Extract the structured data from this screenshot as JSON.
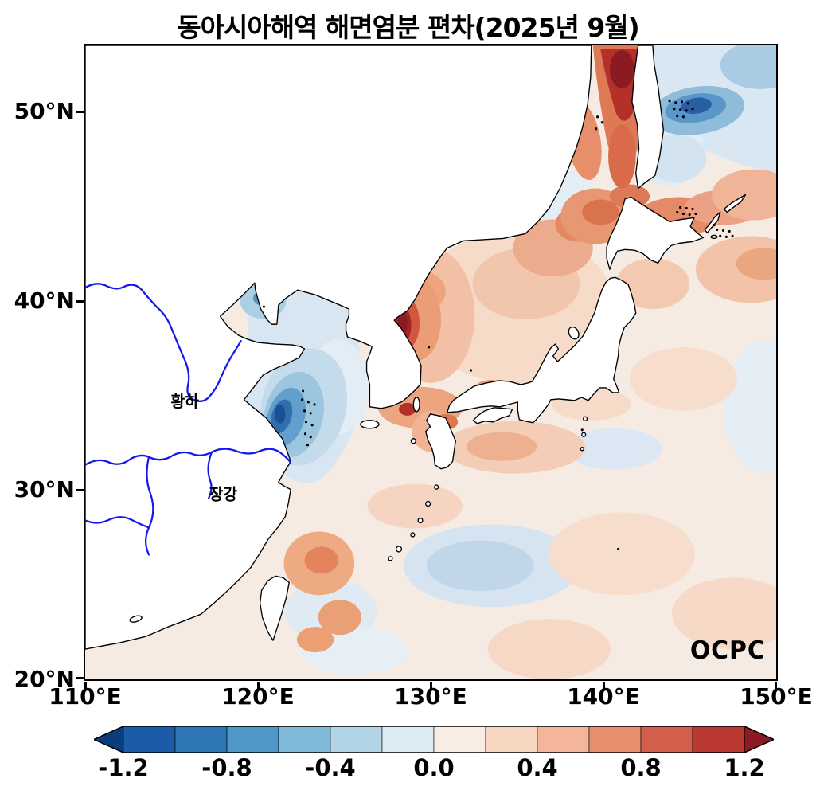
{
  "title": "동아시아해역 해면염분 편차(2025년 9월)",
  "axes": {
    "y_ticks": [
      "50°N",
      "40°N",
      "30°N",
      "20°N"
    ],
    "x_ticks": [
      "110°E",
      "120°E",
      "130°E",
      "140°E",
      "150°E"
    ]
  },
  "map_labels": {
    "yellow_river": "황하",
    "yangtze_river": "장강",
    "logo": "OCPC"
  },
  "colorbar": {
    "ticks": [
      "-1.2",
      "-0.8",
      "-0.4",
      "0.0",
      "0.4",
      "0.8",
      "1.2"
    ],
    "segment_colors": [
      "#1a5ca8",
      "#2e77b5",
      "#4f97c7",
      "#7fb9d9",
      "#b1d4e7",
      "#dcebf3",
      "#f9ece3",
      "#f7d6c1",
      "#f3b69b",
      "#e78e6c",
      "#d2604c",
      "#ba3a32"
    ],
    "under_color": "#0b3d7c",
    "over_color": "#8c1a23"
  },
  "chart_data": {
    "type": "heatmap",
    "title": "동아시아해역 해면염분 편차(2025년 9월)",
    "variable": "sea surface salinity anomaly",
    "x_axis": {
      "label": "longitude",
      "range_deg_e": [
        110,
        150
      ],
      "ticks_deg_e": [
        110,
        120,
        130,
        140,
        150
      ]
    },
    "y_axis": {
      "label": "latitude",
      "range_deg_n": [
        20,
        53.5
      ],
      "ticks_deg_n": [
        20,
        30,
        40,
        50
      ]
    },
    "colorbar_levels": [
      -1.2,
      -1.0,
      -0.8,
      -0.6,
      -0.4,
      -0.2,
      0.0,
      0.2,
      0.4,
      0.6,
      0.8,
      1.0,
      1.2
    ],
    "legend_position": "bottom",
    "grid": false,
    "anomaly_centers": [
      {
        "lon_e": 121.8,
        "lat_n": 33.6,
        "value": -1.0,
        "note": "Yellow Sea negative core, stippled"
      },
      {
        "lon_e": 120.6,
        "lat_n": 40.0,
        "value": -0.6,
        "note": "Bohai Sea negative patch"
      },
      {
        "lon_e": 129.3,
        "lat_n": 38.8,
        "value": 1.3,
        "note": "strong positive core off east coast of Korea"
      },
      {
        "lon_e": 141.0,
        "lat_n": 51.5,
        "value": 1.3,
        "note": "strong positive band in Tatar Strait west of Sakhalin"
      },
      {
        "lon_e": 145.5,
        "lat_n": 50.0,
        "value": -1.2,
        "note": "negative core in Sea of Okhotsk, stippled"
      },
      {
        "lon_e": 144.0,
        "lat_n": 44.3,
        "value": 0.8,
        "note": "positive patch north-east of Hokkaido, stippled"
      },
      {
        "lon_e": 134.0,
        "lat_n": 41.5,
        "value": 0.4,
        "note": "positive area in central-northern East Sea"
      },
      {
        "lon_e": 129.0,
        "lat_n": 34.5,
        "value": 0.6,
        "note": "positive patch around Korea Strait"
      },
      {
        "lon_e": 133.5,
        "lat_n": 26.0,
        "value": -0.4,
        "note": "negative patch in subtropical western North Pacific"
      },
      {
        "lon_e": 123.0,
        "lat_n": 25.5,
        "value": 0.6,
        "note": "positive patch north-east of Taiwan"
      },
      {
        "lon_e": 140.5,
        "lat_n": 32.0,
        "value": -0.2,
        "note": "weak negative patch south of Japan"
      }
    ],
    "rivers": [
      {
        "name": "황하"
      },
      {
        "name": "장강"
      }
    ],
    "watermark": "OCPC"
  }
}
